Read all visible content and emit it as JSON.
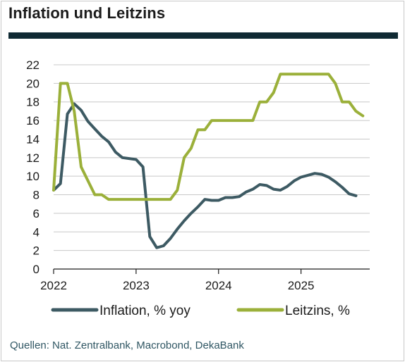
{
  "title": "Inflation und Leitzins",
  "source": "Quellen: Nat. Zentralbank, Macrobond, DekaBank",
  "colors": {
    "inflation": "#3d5a63",
    "leitzins": "#9bb03a",
    "rule": "#0f2a33",
    "grid": "#c8c8c8"
  },
  "chart_data": {
    "type": "line",
    "title": "Inflation und Leitzins",
    "xlabel": "",
    "ylabel": "",
    "xlim": [
      "2022-01",
      "2025-11"
    ],
    "ylim": [
      0,
      22
    ],
    "y_ticks": [
      0,
      2,
      4,
      6,
      8,
      10,
      12,
      14,
      16,
      18,
      20,
      22
    ],
    "x_ticks": [
      "2022",
      "2023",
      "2024",
      "2025"
    ],
    "grid": true,
    "legend": "bottom",
    "series": [
      {
        "name": "Inflation, % yoy",
        "color": "#3d5a63",
        "points": [
          [
            "2022-01",
            8.5
          ],
          [
            "2022-02",
            9.2
          ],
          [
            "2022-03",
            16.7
          ],
          [
            "2022-04",
            17.8
          ],
          [
            "2022-05",
            17.1
          ],
          [
            "2022-06",
            15.9
          ],
          [
            "2022-07",
            15.1
          ],
          [
            "2022-08",
            14.3
          ],
          [
            "2022-09",
            13.7
          ],
          [
            "2022-10",
            12.6
          ],
          [
            "2022-11",
            12.0
          ],
          [
            "2022-12",
            11.9
          ],
          [
            "2023-01",
            11.8
          ],
          [
            "2023-02",
            11.0
          ],
          [
            "2023-03",
            3.5
          ],
          [
            "2023-04",
            2.3
          ],
          [
            "2023-05",
            2.5
          ],
          [
            "2023-06",
            3.3
          ],
          [
            "2023-07",
            4.3
          ],
          [
            "2023-08",
            5.2
          ],
          [
            "2023-09",
            6.0
          ],
          [
            "2023-10",
            6.7
          ],
          [
            "2023-11",
            7.5
          ],
          [
            "2023-12",
            7.4
          ],
          [
            "2024-01",
            7.4
          ],
          [
            "2024-02",
            7.7
          ],
          [
            "2024-03",
            7.7
          ],
          [
            "2024-04",
            7.8
          ],
          [
            "2024-05",
            8.3
          ],
          [
            "2024-06",
            8.6
          ],
          [
            "2024-07",
            9.1
          ],
          [
            "2024-08",
            9.0
          ],
          [
            "2024-09",
            8.6
          ],
          [
            "2024-10",
            8.5
          ],
          [
            "2024-11",
            8.9
          ],
          [
            "2024-12",
            9.5
          ],
          [
            "2025-01",
            9.9
          ],
          [
            "2025-02",
            10.1
          ],
          [
            "2025-03",
            10.3
          ],
          [
            "2025-04",
            10.2
          ],
          [
            "2025-05",
            9.9
          ],
          [
            "2025-06",
            9.4
          ],
          [
            "2025-07",
            8.8
          ],
          [
            "2025-08",
            8.1
          ],
          [
            "2025-09",
            7.9
          ]
        ]
      },
      {
        "name": "Leitzins, %",
        "color": "#9bb03a",
        "points": [
          [
            "2022-01",
            8.5
          ],
          [
            "2022-02",
            20.0
          ],
          [
            "2022-03",
            20.0
          ],
          [
            "2022-04",
            17.0
          ],
          [
            "2022-05",
            11.0
          ],
          [
            "2022-06",
            9.5
          ],
          [
            "2022-07",
            8.0
          ],
          [
            "2022-08",
            8.0
          ],
          [
            "2022-09",
            7.5
          ],
          [
            "2022-10",
            7.5
          ],
          [
            "2022-11",
            7.5
          ],
          [
            "2022-12",
            7.5
          ],
          [
            "2023-01",
            7.5
          ],
          [
            "2023-02",
            7.5
          ],
          [
            "2023-03",
            7.5
          ],
          [
            "2023-04",
            7.5
          ],
          [
            "2023-05",
            7.5
          ],
          [
            "2023-06",
            7.5
          ],
          [
            "2023-07",
            8.5
          ],
          [
            "2023-08",
            12.0
          ],
          [
            "2023-09",
            13.0
          ],
          [
            "2023-10",
            15.0
          ],
          [
            "2023-11",
            15.0
          ],
          [
            "2023-12",
            16.0
          ],
          [
            "2024-01",
            16.0
          ],
          [
            "2024-02",
            16.0
          ],
          [
            "2024-03",
            16.0
          ],
          [
            "2024-04",
            16.0
          ],
          [
            "2024-05",
            16.0
          ],
          [
            "2024-06",
            16.0
          ],
          [
            "2024-07",
            18.0
          ],
          [
            "2024-08",
            18.0
          ],
          [
            "2024-09",
            19.0
          ],
          [
            "2024-10",
            21.0
          ],
          [
            "2024-11",
            21.0
          ],
          [
            "2024-12",
            21.0
          ],
          [
            "2025-01",
            21.0
          ],
          [
            "2025-02",
            21.0
          ],
          [
            "2025-03",
            21.0
          ],
          [
            "2025-04",
            21.0
          ],
          [
            "2025-05",
            21.0
          ],
          [
            "2025-06",
            20.0
          ],
          [
            "2025-07",
            18.0
          ],
          [
            "2025-08",
            18.0
          ],
          [
            "2025-09",
            17.0
          ],
          [
            "2025-10",
            16.5
          ]
        ]
      }
    ]
  }
}
